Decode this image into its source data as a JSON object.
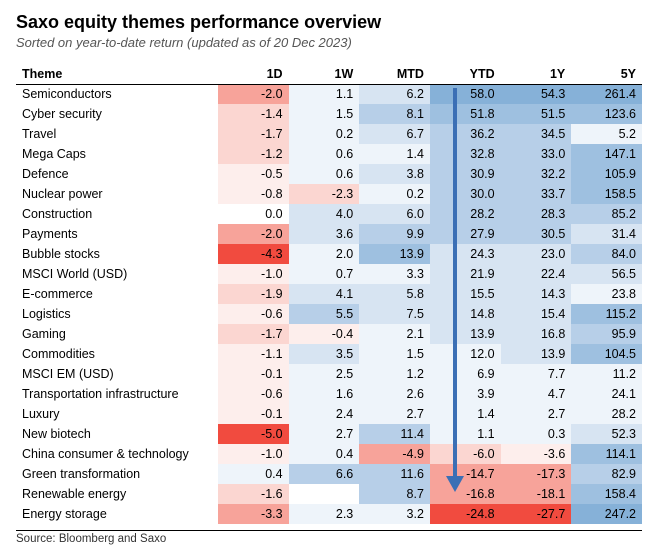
{
  "title": "Saxo equity themes performance overview",
  "subtitle": "Sorted on year-to-date return (updated as of 20 Dec 2023)",
  "source": "Source: Bloomberg and Saxo",
  "columns": [
    "Theme",
    "1D",
    "1W",
    "MTD",
    "YTD",
    "1Y",
    "5Y"
  ],
  "heat": {
    "neg_strong": "#f14b3f",
    "neg_mid": "#f7a39a",
    "neg_light": "#fbd6d1",
    "neg_faint": "#fdeeec",
    "zero": "#ffffff",
    "pos_faint": "#eef4fa",
    "pos_light": "#d7e4f2",
    "pos_mid": "#b7cfe8",
    "pos_strong": "#9ec0e0",
    "pos_strong2": "#86b1d8"
  },
  "arrow_color": "#3b6fb5",
  "rows": [
    {
      "theme": "Semiconductors",
      "v": [
        {
          "t": "-2.0",
          "c": "neg_mid"
        },
        {
          "t": "1.1",
          "c": "pos_faint"
        },
        {
          "t": "6.2",
          "c": "pos_light"
        },
        {
          "t": "58.0",
          "c": "pos_strong2"
        },
        {
          "t": "54.3",
          "c": "pos_strong2"
        },
        {
          "t": "261.4",
          "c": "pos_strong2"
        }
      ]
    },
    {
      "theme": "Cyber security",
      "v": [
        {
          "t": "-1.4",
          "c": "neg_light"
        },
        {
          "t": "1.5",
          "c": "pos_faint"
        },
        {
          "t": "8.1",
          "c": "pos_mid"
        },
        {
          "t": "51.8",
          "c": "pos_strong"
        },
        {
          "t": "51.5",
          "c": "pos_strong"
        },
        {
          "t": "123.6",
          "c": "pos_strong"
        }
      ]
    },
    {
      "theme": "Travel",
      "v": [
        {
          "t": "-1.7",
          "c": "neg_light"
        },
        {
          "t": "0.2",
          "c": "pos_faint"
        },
        {
          "t": "6.7",
          "c": "pos_light"
        },
        {
          "t": "36.2",
          "c": "pos_mid"
        },
        {
          "t": "34.5",
          "c": "pos_mid"
        },
        {
          "t": "5.2",
          "c": "pos_faint"
        }
      ]
    },
    {
      "theme": "Mega Caps",
      "v": [
        {
          "t": "-1.2",
          "c": "neg_light"
        },
        {
          "t": "0.6",
          "c": "pos_faint"
        },
        {
          "t": "1.4",
          "c": "pos_faint"
        },
        {
          "t": "32.8",
          "c": "pos_mid"
        },
        {
          "t": "33.0",
          "c": "pos_mid"
        },
        {
          "t": "147.1",
          "c": "pos_strong"
        }
      ]
    },
    {
      "theme": "Defence",
      "v": [
        {
          "t": "-0.5",
          "c": "neg_faint"
        },
        {
          "t": "0.6",
          "c": "pos_faint"
        },
        {
          "t": "3.8",
          "c": "pos_light"
        },
        {
          "t": "30.9",
          "c": "pos_mid"
        },
        {
          "t": "32.2",
          "c": "pos_mid"
        },
        {
          "t": "105.9",
          "c": "pos_strong"
        }
      ]
    },
    {
      "theme": "Nuclear power",
      "v": [
        {
          "t": "-0.8",
          "c": "neg_faint"
        },
        {
          "t": "-2.3",
          "c": "neg_light"
        },
        {
          "t": "0.2",
          "c": "pos_faint"
        },
        {
          "t": "30.0",
          "c": "pos_mid"
        },
        {
          "t": "33.7",
          "c": "pos_mid"
        },
        {
          "t": "158.5",
          "c": "pos_strong"
        }
      ]
    },
    {
      "theme": "Construction",
      "v": [
        {
          "t": "0.0",
          "c": "zero"
        },
        {
          "t": "4.0",
          "c": "pos_light"
        },
        {
          "t": "6.0",
          "c": "pos_light"
        },
        {
          "t": "28.2",
          "c": "pos_mid"
        },
        {
          "t": "28.3",
          "c": "pos_mid"
        },
        {
          "t": "85.2",
          "c": "pos_mid"
        }
      ]
    },
    {
      "theme": "Payments",
      "v": [
        {
          "t": "-2.0",
          "c": "neg_mid"
        },
        {
          "t": "3.6",
          "c": "pos_light"
        },
        {
          "t": "9.9",
          "c": "pos_mid"
        },
        {
          "t": "27.9",
          "c": "pos_mid"
        },
        {
          "t": "30.5",
          "c": "pos_mid"
        },
        {
          "t": "31.4",
          "c": "pos_light"
        }
      ]
    },
    {
      "theme": "Bubble stocks",
      "v": [
        {
          "t": "-4.3",
          "c": "neg_strong"
        },
        {
          "t": "2.0",
          "c": "pos_faint"
        },
        {
          "t": "13.9",
          "c": "pos_strong"
        },
        {
          "t": "24.3",
          "c": "pos_light"
        },
        {
          "t": "23.0",
          "c": "pos_light"
        },
        {
          "t": "84.0",
          "c": "pos_mid"
        }
      ]
    },
    {
      "theme": "MSCI World (USD)",
      "v": [
        {
          "t": "-1.0",
          "c": "neg_faint"
        },
        {
          "t": "0.7",
          "c": "pos_faint"
        },
        {
          "t": "3.3",
          "c": "pos_faint"
        },
        {
          "t": "21.9",
          "c": "pos_light"
        },
        {
          "t": "22.4",
          "c": "pos_light"
        },
        {
          "t": "56.5",
          "c": "pos_light"
        }
      ]
    },
    {
      "theme": "E-commerce",
      "v": [
        {
          "t": "-1.9",
          "c": "neg_light"
        },
        {
          "t": "4.1",
          "c": "pos_light"
        },
        {
          "t": "5.8",
          "c": "pos_light"
        },
        {
          "t": "15.5",
          "c": "pos_light"
        },
        {
          "t": "14.3",
          "c": "pos_light"
        },
        {
          "t": "23.8",
          "c": "pos_faint"
        }
      ]
    },
    {
      "theme": "Logistics",
      "v": [
        {
          "t": "-0.6",
          "c": "neg_faint"
        },
        {
          "t": "5.5",
          "c": "pos_mid"
        },
        {
          "t": "7.5",
          "c": "pos_light"
        },
        {
          "t": "14.8",
          "c": "pos_light"
        },
        {
          "t": "15.4",
          "c": "pos_light"
        },
        {
          "t": "115.2",
          "c": "pos_strong"
        }
      ]
    },
    {
      "theme": "Gaming",
      "v": [
        {
          "t": "-1.7",
          "c": "neg_light"
        },
        {
          "t": "-0.4",
          "c": "neg_faint"
        },
        {
          "t": "2.1",
          "c": "pos_faint"
        },
        {
          "t": "13.9",
          "c": "pos_light"
        },
        {
          "t": "16.8",
          "c": "pos_light"
        },
        {
          "t": "95.9",
          "c": "pos_mid"
        }
      ]
    },
    {
      "theme": "Commodities",
      "v": [
        {
          "t": "-1.1",
          "c": "neg_faint"
        },
        {
          "t": "3.5",
          "c": "pos_light"
        },
        {
          "t": "1.5",
          "c": "pos_faint"
        },
        {
          "t": "12.0",
          "c": "pos_faint"
        },
        {
          "t": "13.9",
          "c": "pos_light"
        },
        {
          "t": "104.5",
          "c": "pos_strong"
        }
      ]
    },
    {
      "theme": "MSCI EM (USD)",
      "v": [
        {
          "t": "-0.1",
          "c": "neg_faint"
        },
        {
          "t": "2.5",
          "c": "pos_faint"
        },
        {
          "t": "1.2",
          "c": "pos_faint"
        },
        {
          "t": "6.9",
          "c": "pos_faint"
        },
        {
          "t": "7.7",
          "c": "pos_faint"
        },
        {
          "t": "11.2",
          "c": "pos_faint"
        }
      ]
    },
    {
      "theme": "Transportation infrastructure",
      "v": [
        {
          "t": "-0.6",
          "c": "neg_faint"
        },
        {
          "t": "1.6",
          "c": "pos_faint"
        },
        {
          "t": "2.6",
          "c": "pos_faint"
        },
        {
          "t": "3.9",
          "c": "pos_faint"
        },
        {
          "t": "4.7",
          "c": "pos_faint"
        },
        {
          "t": "24.1",
          "c": "pos_faint"
        }
      ]
    },
    {
      "theme": "Luxury",
      "v": [
        {
          "t": "-0.1",
          "c": "neg_faint"
        },
        {
          "t": "2.4",
          "c": "pos_faint"
        },
        {
          "t": "2.7",
          "c": "pos_faint"
        },
        {
          "t": "1.4",
          "c": "pos_faint"
        },
        {
          "t": "2.7",
          "c": "pos_faint"
        },
        {
          "t": "28.2",
          "c": "pos_faint"
        }
      ]
    },
    {
      "theme": "New biotech",
      "v": [
        {
          "t": "-5.0",
          "c": "neg_strong"
        },
        {
          "t": "2.7",
          "c": "pos_faint"
        },
        {
          "t": "11.4",
          "c": "pos_mid"
        },
        {
          "t": "1.1",
          "c": "pos_faint"
        },
        {
          "t": "0.3",
          "c": "pos_faint"
        },
        {
          "t": "52.3",
          "c": "pos_light"
        }
      ]
    },
    {
      "theme": "China consumer & technology",
      "v": [
        {
          "t": "-1.0",
          "c": "neg_faint"
        },
        {
          "t": "0.4",
          "c": "pos_faint"
        },
        {
          "t": "-4.9",
          "c": "neg_mid"
        },
        {
          "t": "-6.0",
          "c": "neg_light"
        },
        {
          "t": "-3.6",
          "c": "neg_faint"
        },
        {
          "t": "114.1",
          "c": "pos_strong"
        }
      ]
    },
    {
      "theme": "Green transformation",
      "v": [
        {
          "t": "0.4",
          "c": "pos_faint"
        },
        {
          "t": "6.6",
          "c": "pos_mid"
        },
        {
          "t": "11.6",
          "c": "pos_mid"
        },
        {
          "t": "-14.7",
          "c": "neg_mid"
        },
        {
          "t": "-17.3",
          "c": "neg_mid"
        },
        {
          "t": "82.9",
          "c": "pos_mid"
        }
      ]
    },
    {
      "theme": "Renewable energy",
      "v": [
        {
          "t": "-1.6",
          "c": "neg_light"
        },
        {
          "t": "",
          "c": "zero"
        },
        {
          "t": "8.7",
          "c": "pos_mid"
        },
        {
          "t": "-16.8",
          "c": "neg_mid"
        },
        {
          "t": "-18.1",
          "c": "neg_mid"
        },
        {
          "t": "158.4",
          "c": "pos_strong"
        }
      ]
    },
    {
      "theme": "Energy storage",
      "v": [
        {
          "t": "-3.3",
          "c": "neg_mid"
        },
        {
          "t": "2.3",
          "c": "pos_faint"
        },
        {
          "t": "3.2",
          "c": "pos_faint"
        },
        {
          "t": "-24.8",
          "c": "neg_strong"
        },
        {
          "t": "-27.7",
          "c": "neg_strong"
        },
        {
          "t": "247.2",
          "c": "pos_strong2"
        }
      ]
    }
  ]
}
